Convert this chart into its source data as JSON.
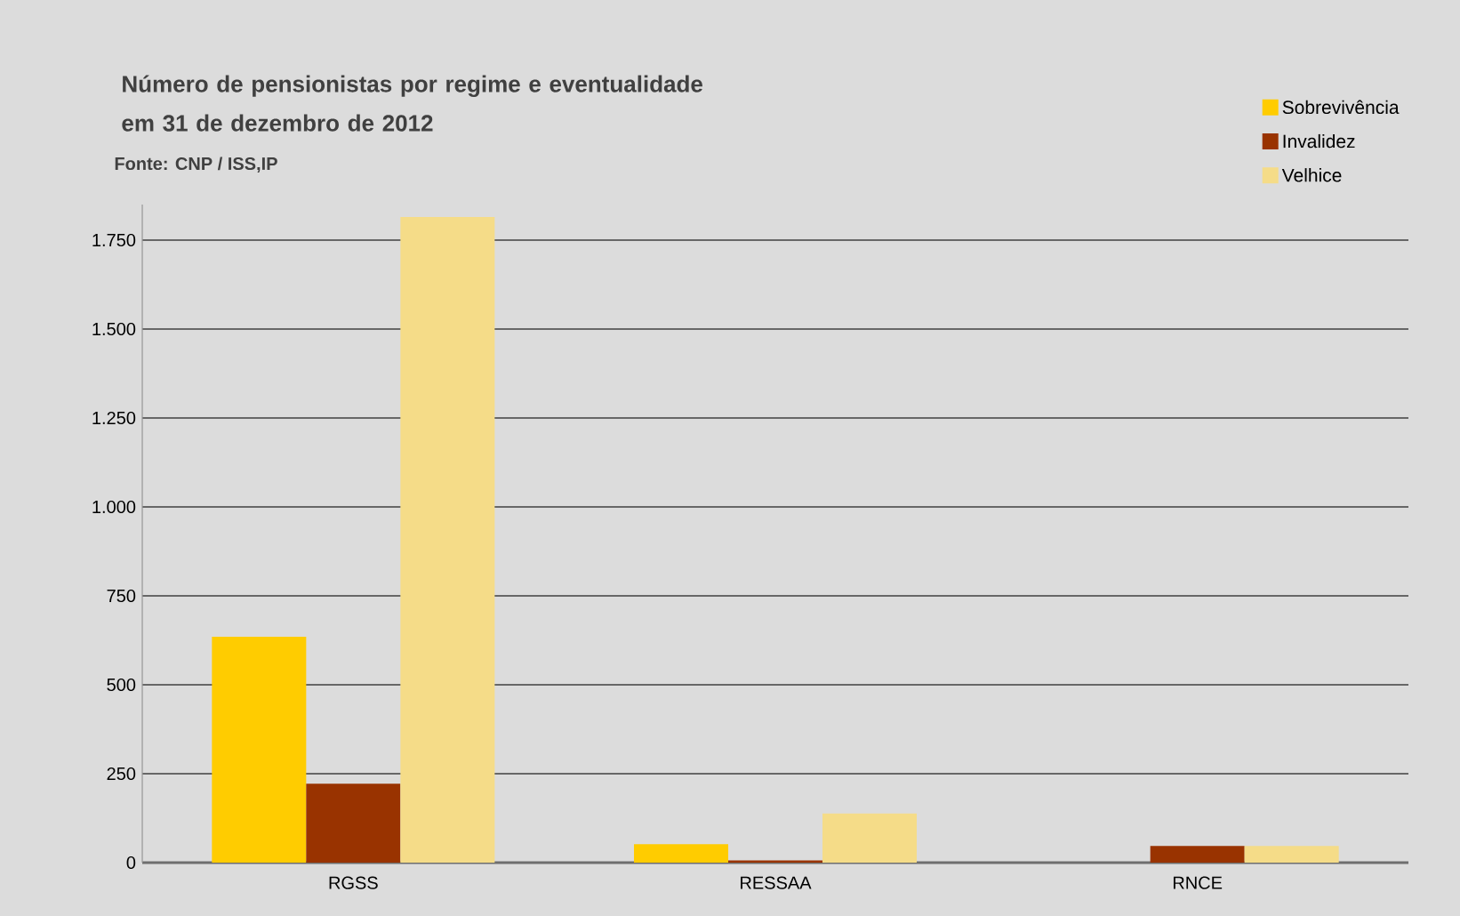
{
  "chart_data": {
    "type": "bar",
    "title": "Número de pensionistas por regime e eventualidade em 31 de dezembro de 2012",
    "annotations": [
      "Fonte: CNP / ISS,IP"
    ],
    "categories": [
      "RGSS",
      "RESSAA",
      "RNCE"
    ],
    "series": [
      {
        "name": "Sobrevivência",
        "color": "#ffcc00",
        "values": [
          635,
          52,
          0
        ]
      },
      {
        "name": "Invalidez",
        "color": "#993300",
        "values": [
          222,
          6,
          47
        ]
      },
      {
        "name": "Velhice",
        "color": "#f5dc88",
        "values": [
          1815,
          138,
          47
        ]
      }
    ],
    "yticks": [
      0,
      250,
      500,
      750,
      {
        "value": 1000,
        "label": "1.000"
      },
      {
        "value": 1250,
        "label": "1.250"
      },
      {
        "value": 1500,
        "label": "1.500"
      },
      {
        "value": 1750,
        "label": "1.750"
      }
    ],
    "ylim": [
      0,
      1850
    ],
    "grid": "y",
    "legend": "top right"
  }
}
